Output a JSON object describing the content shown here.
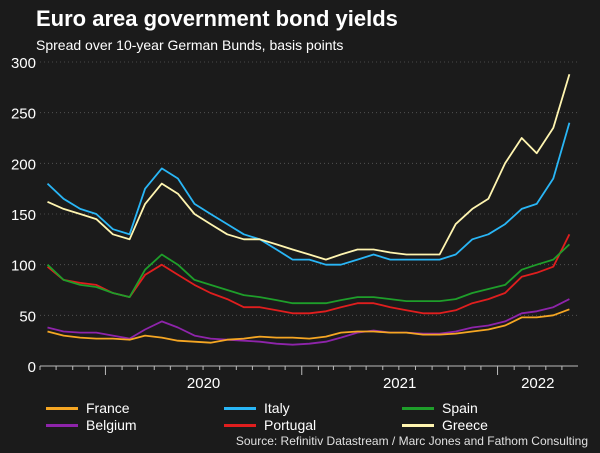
{
  "header": {
    "title": "Euro area government bond yields",
    "subtitle": "Spread over 10-year German Bunds, basis points"
  },
  "source": "Source: Refinitiv Datastream / Marc Jones and Fathom Consulting",
  "colors": {
    "background": "#1b1b1b",
    "grid": "#5a5a5a",
    "France": "#f5a623",
    "Italy": "#29b6f6",
    "Spain": "#1e9e2a",
    "Belgium": "#8e24aa",
    "Portugal": "#e01e1e",
    "Greece": "#fff5b0"
  },
  "chart_data": {
    "type": "line",
    "title": "Euro area government bond yields",
    "subtitle": "Spread over 10-year German Bunds, basis points",
    "ylim": [
      0,
      300
    ],
    "yticks": [
      0,
      50,
      100,
      150,
      200,
      250,
      300
    ],
    "xlim": [
      "2019-09-01",
      "2022-05-31"
    ],
    "xticks": [
      {
        "label": "2020",
        "date": "2020-01-01"
      },
      {
        "label": "2021",
        "date": "2021-01-01"
      },
      {
        "label": "2022",
        "date": "2022-01-01"
      }
    ],
    "grid": "horizontal",
    "legend": "bottom",
    "x": [
      "2019-09",
      "2019-10",
      "2019-11",
      "2019-12",
      "2020-01",
      "2020-02",
      "2020-03",
      "2020-04",
      "2020-05",
      "2020-06",
      "2020-07",
      "2020-08",
      "2020-09",
      "2020-10",
      "2020-11",
      "2020-12",
      "2021-01",
      "2021-02",
      "2021-03",
      "2021-04",
      "2021-05",
      "2021-06",
      "2021-07",
      "2021-08",
      "2021-09",
      "2021-10",
      "2021-11",
      "2021-12",
      "2022-01",
      "2022-02",
      "2022-03",
      "2022-04",
      "2022-05"
    ],
    "series": [
      {
        "name": "France",
        "values": [
          34,
          30,
          28,
          27,
          27,
          26,
          30,
          28,
          25,
          24,
          23,
          26,
          27,
          29,
          28,
          28,
          27,
          29,
          33,
          34,
          34,
          33,
          33,
          31,
          31,
          32,
          34,
          36,
          40,
          48,
          48,
          50,
          56
        ]
      },
      {
        "name": "Italy",
        "values": [
          180,
          165,
          155,
          150,
          135,
          130,
          175,
          195,
          185,
          160,
          150,
          140,
          130,
          125,
          115,
          105,
          105,
          100,
          100,
          105,
          110,
          105,
          105,
          105,
          105,
          110,
          125,
          130,
          140,
          155,
          160,
          185,
          240
        ]
      },
      {
        "name": "Spain",
        "values": [
          100,
          85,
          80,
          78,
          72,
          68,
          95,
          110,
          100,
          85,
          80,
          75,
          70,
          68,
          65,
          62,
          62,
          62,
          65,
          68,
          68,
          66,
          64,
          64,
          64,
          66,
          72,
          76,
          80,
          95,
          100,
          105,
          120
        ]
      },
      {
        "name": "Belgium",
        "values": [
          38,
          34,
          33,
          33,
          30,
          27,
          36,
          44,
          38,
          30,
          27,
          26,
          25,
          24,
          22,
          21,
          22,
          24,
          28,
          33,
          35,
          33,
          33,
          32,
          32,
          34,
          38,
          40,
          44,
          52,
          54,
          58,
          66
        ]
      },
      {
        "name": "Portugal",
        "values": [
          98,
          85,
          82,
          80,
          72,
          68,
          90,
          100,
          90,
          80,
          72,
          66,
          58,
          58,
          55,
          52,
          52,
          54,
          58,
          62,
          62,
          58,
          55,
          52,
          52,
          55,
          62,
          66,
          72,
          88,
          92,
          98,
          130
        ]
      },
      {
        "name": "Greece",
        "values": [
          162,
          155,
          150,
          145,
          130,
          125,
          160,
          180,
          170,
          150,
          140,
          130,
          125,
          125,
          120,
          115,
          110,
          105,
          110,
          115,
          115,
          112,
          110,
          110,
          110,
          140,
          155,
          165,
          200,
          225,
          210,
          235,
          288
        ]
      }
    ]
  },
  "legend": [
    {
      "label": "France"
    },
    {
      "label": "Italy"
    },
    {
      "label": "Spain"
    },
    {
      "label": "Belgium"
    },
    {
      "label": "Portugal"
    },
    {
      "label": "Greece"
    }
  ]
}
